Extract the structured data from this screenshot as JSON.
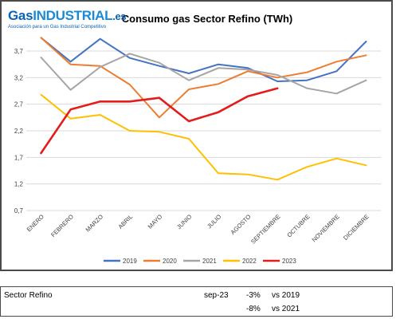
{
  "logo": {
    "brand_gas": "Gas",
    "brand_industrial": "INDUSTRIAL",
    "brand_tld": ".es",
    "tagline": "Asociación para un Gas Industrial Competitivo"
  },
  "chart_data": {
    "type": "line",
    "title": "Consumo gas Sector Refino (TWh)",
    "xlabel": "",
    "ylabel": "",
    "categories": [
      "ENERO",
      "FEBRERO",
      "MARZO",
      "ABRIL",
      "MAYO",
      "JUNIO",
      "JULIO",
      "AGOSTO",
      "SEPTIEMBRE",
      "OCTUBRE",
      "NOVIEMBRE",
      "DICIEMBRE"
    ],
    "ylim": [
      0.7,
      4.0
    ],
    "yticks": [
      "0,7",
      "1,2",
      "1,7",
      "2,2",
      "2,7",
      "3,2",
      "3,7"
    ],
    "ytick_values": [
      0.7,
      1.2,
      1.7,
      2.2,
      2.7,
      3.2,
      3.7
    ],
    "grid": true,
    "legend_position": "bottom",
    "series": [
      {
        "name": "2019",
        "color": "#4472c4",
        "values": [
          3.95,
          3.5,
          3.93,
          3.57,
          3.42,
          3.28,
          3.45,
          3.38,
          3.13,
          3.15,
          3.32,
          3.88
        ]
      },
      {
        "name": "2020",
        "color": "#ed7d31",
        "values": [
          3.95,
          3.45,
          3.42,
          3.07,
          2.45,
          2.98,
          3.08,
          3.32,
          3.2,
          3.3,
          3.5,
          3.62
        ]
      },
      {
        "name": "2021",
        "color": "#a5a5a5",
        "values": [
          3.58,
          2.97,
          3.4,
          3.65,
          3.48,
          3.15,
          3.38,
          3.35,
          3.25,
          3.0,
          2.9,
          3.15
        ]
      },
      {
        "name": "2022",
        "color": "#ffc000",
        "values": [
          2.88,
          2.43,
          2.5,
          2.2,
          2.18,
          2.05,
          1.4,
          1.38,
          1.28,
          1.52,
          1.68,
          1.55
        ]
      },
      {
        "name": "2023",
        "color": "#e31c1c",
        "values": [
          1.78,
          2.6,
          2.75,
          2.75,
          2.82,
          2.38,
          2.55,
          2.85,
          3.0,
          null,
          null,
          null
        ]
      }
    ]
  },
  "summary": {
    "sector_label": "Sector Refino",
    "period": "sep-23",
    "rows": [
      {
        "change": "-3%",
        "comparison": "vs 2019"
      },
      {
        "change": "-8%",
        "comparison": "vs 2021"
      }
    ]
  }
}
